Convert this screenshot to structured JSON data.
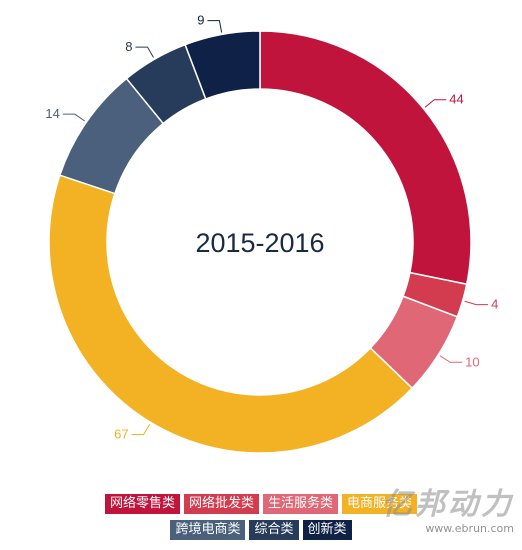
{
  "chart_data": {
    "type": "pie",
    "title": "2015-2016",
    "categories": [
      "网络零售类",
      "网络批发类",
      "生活服务类",
      "电商服务类",
      "跨境电商类",
      "综合类",
      "创新类"
    ],
    "values": [
      44,
      4,
      10,
      67,
      14,
      8,
      9
    ],
    "colors": [
      "#c0143c",
      "#d33c4e",
      "#e06775",
      "#f3b124",
      "#4a607c",
      "#263c5a",
      "#0f2146"
    ],
    "legend_placement": "bottom",
    "legend_text_color": "#ffffff"
  },
  "legend": {
    "rows": [
      [
        "网络零售类",
        "网络批发类",
        "生活服务类",
        "电商服务类"
      ],
      [
        "跨境电商类",
        "综合类",
        "创新类"
      ]
    ]
  },
  "watermark": {
    "brand": "亿邦动力",
    "url": "www.ebrun.com"
  }
}
